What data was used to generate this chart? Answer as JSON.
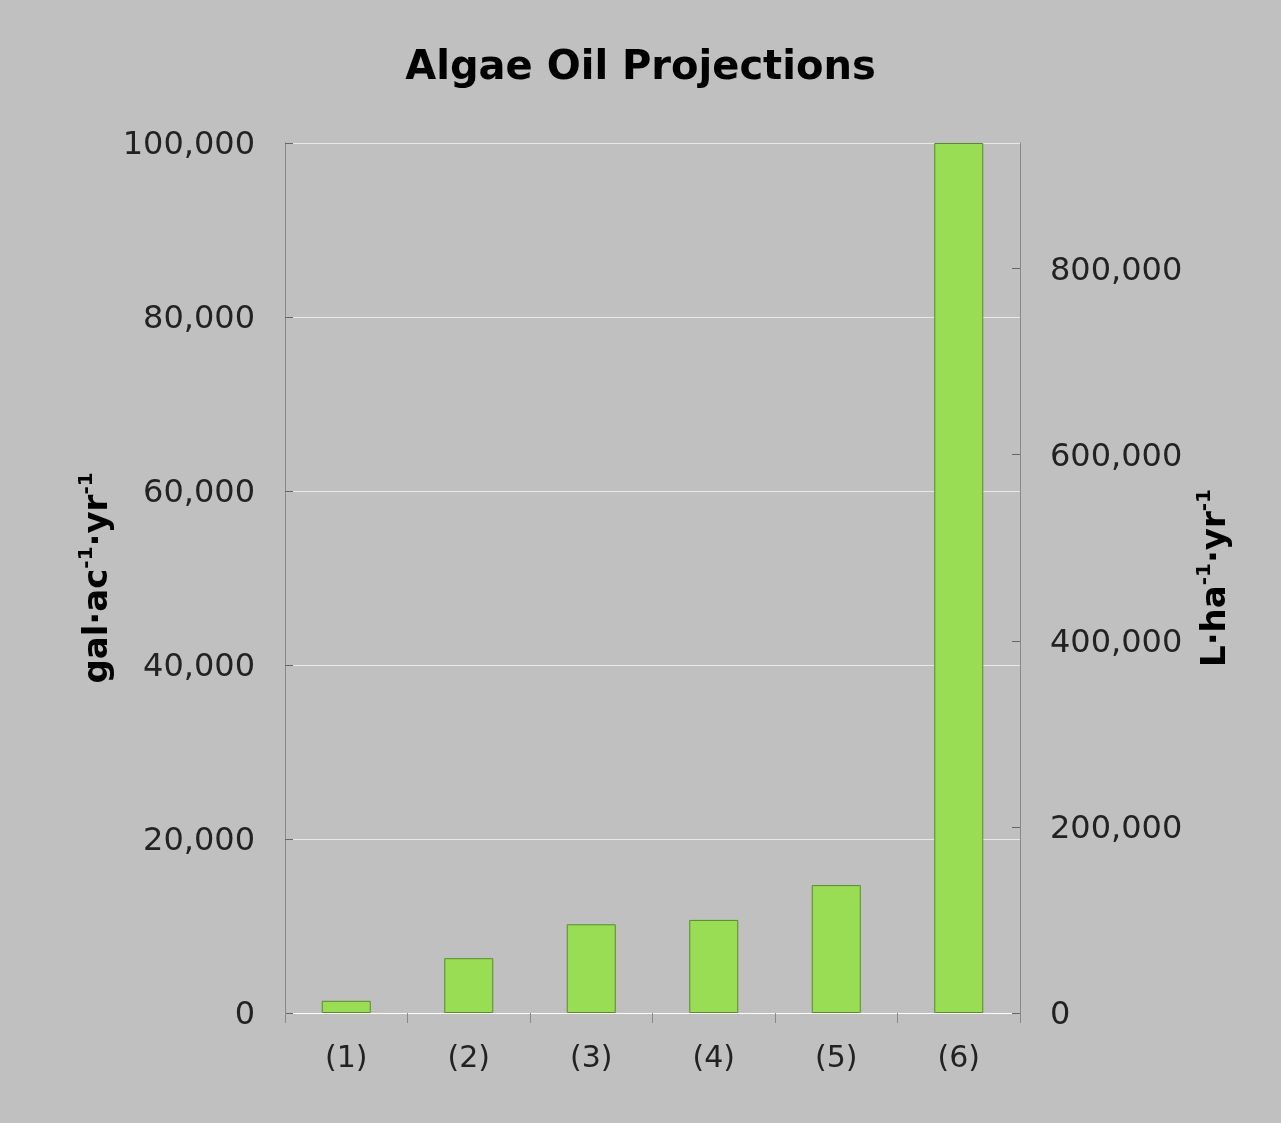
{
  "chart_data": {
    "type": "bar",
    "title": "Algae Oil Projections",
    "categories": [
      "(1)",
      "(2)",
      "(3)",
      "(4)",
      "(5)",
      "(6)"
    ],
    "values": [
      1400,
      6300,
      10200,
      10700,
      14700,
      100000
    ],
    "color": "#99dd55",
    "ylabel": "gal·ac$^{-1}$·yr$^{-1}$",
    "y2label": "L·ha$^{-1}$·yr$^{-1}$",
    "ylim": [
      0,
      100000
    ],
    "yticks": [
      0,
      {
        "value": 20000,
        "label": "20,000"
      },
      {
        "value": 40000,
        "label": "40,000"
      },
      {
        "value": 60000,
        "label": "60,000"
      },
      {
        "value": 80000,
        "label": "80,000"
      },
      {
        "value": 100000,
        "label": "100,000"
      }
    ],
    "y2lim": [
      0,
      935000
    ],
    "y2ticks": [
      0,
      {
        "value": 200000,
        "label": "200,000"
      },
      {
        "value": 400000,
        "label": "400,000"
      },
      {
        "value": 600000,
        "label": "600,000"
      },
      {
        "value": 800000,
        "label": "800,000"
      }
    ],
    "grid": "y"
  }
}
